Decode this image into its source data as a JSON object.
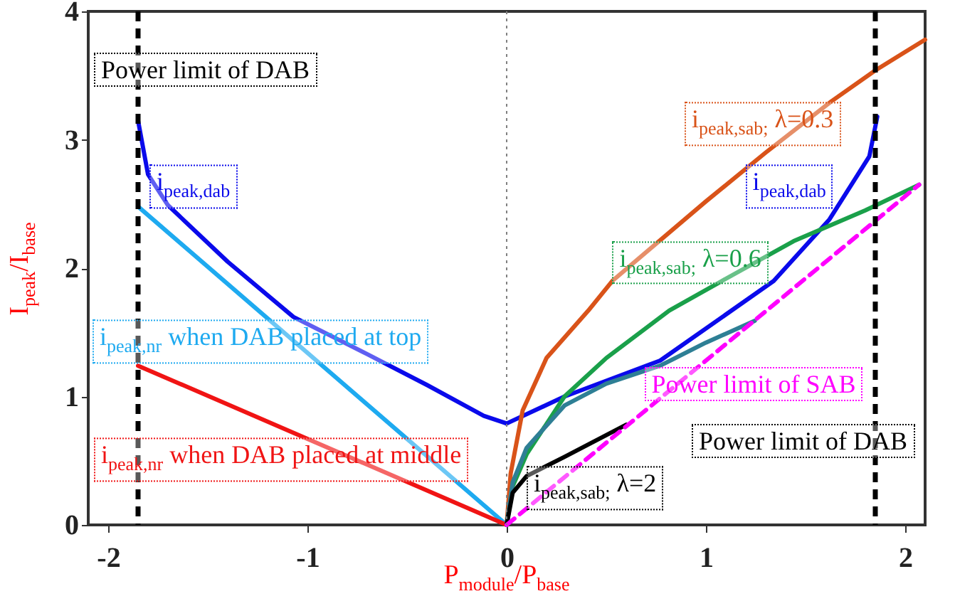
{
  "chart_data": {
    "type": "line",
    "xlabel": "P$_{module}$/P$_{base}$",
    "ylabel": "I$_{peak}$/I$_{base}$",
    "xlim": [
      -2.1,
      2.1
    ],
    "ylim": [
      0,
      4
    ],
    "xticks": [
      -2,
      -1,
      0,
      1,
      2
    ],
    "yticks": [
      0,
      1,
      2,
      3,
      4
    ],
    "grid": false,
    "series": [
      {
        "name": "i$_{peak,dab}$",
        "color": "#0a0aeb",
        "x": [
          -1.85,
          -1.8,
          -1.7,
          -1.4,
          -1.07,
          -0.7,
          -0.4,
          -0.115,
          0
        ],
        "values": [
          3.15,
          2.73,
          2.49,
          2.05,
          1.62,
          1.33,
          1.09,
          0.85,
          0.79
        ]
      },
      {
        "name": "i$_{peak,dab}$",
        "color": "#0a0aeb",
        "x": [
          0,
          0.29,
          0.77,
          1.34,
          1.62,
          1.82,
          1.86
        ],
        "values": [
          0.79,
          1.0,
          1.28,
          1.9,
          2.38,
          2.87,
          3.18
        ]
      },
      {
        "name": "i$_{peak,nr}$ when DAB placed at top",
        "color": "#1eaaf0",
        "x": [
          -1.85,
          0
        ],
        "values": [
          2.48,
          0
        ]
      },
      {
        "name": "i$_{peak,nr}$ when DAB placed at middle",
        "color": "#f01414",
        "x": [
          -1.85,
          0
        ],
        "values": [
          1.24,
          0
        ]
      },
      {
        "name": "i$_{peak,sab;}$ λ=0.3",
        "color": "#d95319",
        "x": [
          0,
          0.02,
          0.08,
          0.2,
          0.41,
          0.53,
          1.0,
          1.3,
          1.63,
          1.85,
          2.1
        ],
        "values": [
          0,
          0.4,
          0.89,
          1.3,
          1.67,
          1.9,
          2.52,
          2.9,
          3.3,
          3.54,
          3.78
        ]
      },
      {
        "name": "i$_{peak,sab;}$ λ=0.6",
        "color": "#1aa04a",
        "x": [
          0,
          0.03,
          0.1,
          0.29,
          0.5,
          0.816,
          1.08,
          1.44,
          1.8,
          2.07
        ],
        "values": [
          0,
          0.3,
          0.55,
          1.0,
          1.3,
          1.67,
          1.9,
          2.21,
          2.45,
          2.65
        ]
      },
      {
        "color": "#2e7f95",
        "x": [
          0,
          0.03,
          0.1,
          0.29,
          0.5,
          0.77,
          1.0,
          1.245
        ],
        "values": [
          0,
          0.33,
          0.6,
          0.93,
          1.1,
          1.24,
          1.42,
          1.59
        ]
      },
      {
        "name": "i$_{peak,sab;}$ λ=2",
        "color": "#000000",
        "x": [
          0,
          0.03,
          0.1,
          0.29,
          0.6
        ],
        "values": [
          0,
          0.25,
          0.38,
          0.53,
          0.78
        ]
      },
      {
        "name": "Power limit of SAB",
        "color": "#ff00ff",
        "line_style": "dashed",
        "x": [
          0,
          2.07
        ],
        "values": [
          0,
          2.65
        ]
      }
    ],
    "ref_lines": [
      {
        "axis": "x",
        "value": -1.85,
        "label": "Power limit of DAB",
        "color": "#000000",
        "line_style": "dashed"
      },
      {
        "axis": "x",
        "value": 1.85,
        "label": "Power limit of DAB",
        "color": "#000000",
        "line_style": "dashed"
      },
      {
        "axis": "x",
        "value": 0,
        "color": "#808080",
        "line_style": "dotted"
      }
    ]
  }
}
